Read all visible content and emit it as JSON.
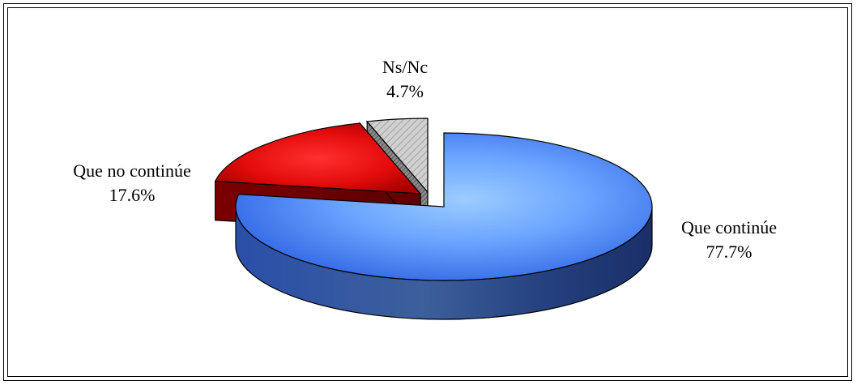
{
  "chart_data": {
    "type": "pie",
    "title": "",
    "slices": [
      {
        "label": "Que continúe",
        "value": 77.7,
        "value_label": "77.7%",
        "color": "#4b7cf0"
      },
      {
        "label": "Que no continúe",
        "value": 17.6,
        "value_label": "17.6%",
        "color": "#e01010"
      },
      {
        "label": "Ns/Nc",
        "value": 4.7,
        "value_label": "4.7%",
        "color": "#b4b4b4"
      }
    ],
    "exploded": true,
    "three_d": true,
    "legend": "none"
  }
}
